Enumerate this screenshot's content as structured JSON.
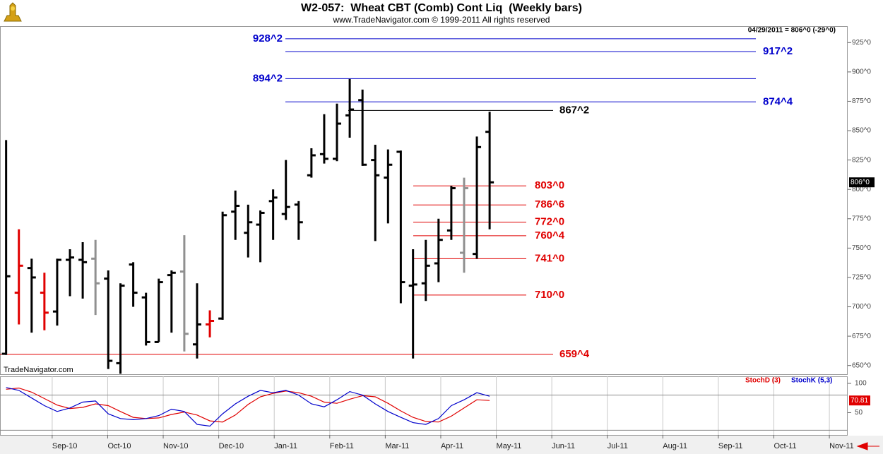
{
  "chart_data": [
    {
      "type": "ohlc",
      "title": "W2-057:  Wheat CBT (Comb) Cont Liq  (Weekly bars)",
      "subtitle": "www.TradeNavigator.com © 1999-2011 All rights reserved",
      "note": "04/29/2011 = 806^0 (-29^0)",
      "watermark": "TradeNavigator.com",
      "x": [
        -0.83,
        -0.6,
        -0.37,
        -0.14,
        0.09,
        0.32,
        0.55,
        0.78,
        1.01,
        1.23,
        1.46,
        1.69,
        1.92,
        2.15,
        2.38,
        2.61,
        2.84,
        3.07,
        3.3,
        3.53,
        3.75,
        3.98,
        4.21,
        4.44,
        4.67,
        4.9,
        5.13,
        5.36,
        5.59,
        5.82,
        6.05,
        6.28,
        6.5,
        6.73,
        6.96,
        7.19,
        7.42,
        7.65,
        7.88
      ],
      "xlim": [
        -0.94,
        14.33
      ],
      "series": [
        {
          "open": [
            660,
            712,
            733,
            712,
            696,
            740,
            740,
            741,
            724,
            652,
            736,
            708,
            670,
            727,
            730,
            668,
            685,
            690,
            781,
            763,
            770,
            790,
            779,
            787,
            812,
            830,
            826,
            863,
            876,
            825,
            810,
            832,
            718,
            720,
            737,
            765,
            746,
            745,
            849
          ],
          "high": [
            842,
            766,
            741,
            729,
            741,
            749,
            755,
            757,
            731,
            720,
            738,
            712,
            724,
            731,
            761,
            720,
            697,
            781,
            799,
            787,
            782,
            800,
            825,
            790,
            835,
            864,
            873,
            894,
            885,
            838,
            834,
            833,
            749,
            757,
            775,
            803,
            810,
            845,
            866
          ],
          "low": [
            659,
            685,
            678,
            680,
            684,
            709,
            707,
            693,
            647,
            643,
            700,
            667,
            670,
            678,
            662,
            656,
            674,
            689,
            757,
            742,
            738,
            757,
            774,
            757,
            810,
            822,
            824,
            844,
            820,
            756,
            771,
            703,
            656,
            705,
            721,
            757,
            729,
            741,
            766
          ],
          "close": [
            726,
            735,
            725,
            695,
            740,
            742,
            738,
            720,
            654,
            718,
            712,
            670,
            721,
            729,
            677,
            685,
            688,
            778,
            786,
            772,
            780,
            793,
            785,
            772,
            829,
            826,
            856,
            868,
            821,
            812,
            821,
            721,
            719,
            735,
            757,
            801,
            801,
            836,
            806
          ],
          "colors": [
            "#000000",
            "#e00000",
            "#000000",
            "#e00000",
            "#000000",
            "#000000",
            "#000000",
            "#909090",
            "#000000",
            "#000000",
            "#000000",
            "#000000",
            "#000000",
            "#000000",
            "#909090",
            "#000000",
            "#e00000",
            "#000000",
            "#000000",
            "#000000",
            "#000000",
            "#000000",
            "#000000",
            "#000000",
            "#000000",
            "#000000",
            "#000000",
            "#000000",
            "#000000",
            "#000000",
            "#000000",
            "#000000",
            "#000000",
            "#000000",
            "#000000",
            "#000000",
            "#909090",
            "#000000",
            "#000000"
          ],
          "last_label": "806^0"
        }
      ],
      "ylim": [
        642,
        939
      ],
      "yticks": [
        {
          "value": 650,
          "label": "650^0"
        },
        {
          "value": 675,
          "label": "675^0"
        },
        {
          "value": 700,
          "label": "700^0"
        },
        {
          "value": 725,
          "label": "725^0"
        },
        {
          "value": 750,
          "label": "750^0"
        },
        {
          "value": 775,
          "label": "775^0"
        },
        {
          "value": 800,
          "label": "800^0"
        },
        {
          "value": 825,
          "label": "825^0"
        },
        {
          "value": 850,
          "label": "850^0"
        },
        {
          "value": 875,
          "label": "875^0"
        },
        {
          "value": 900,
          "label": "900^0"
        },
        {
          "value": 925,
          "label": "925^0"
        }
      ],
      "levels": [
        {
          "value": 928.25,
          "label": "928^2",
          "color": "#0000cc"
        },
        {
          "value": 917.25,
          "label": "917^2",
          "color": "#0000cc"
        },
        {
          "value": 894.25,
          "label": "894^2",
          "color": "#0000cc"
        },
        {
          "value": 874.5,
          "label": "874^4",
          "color": "#0000cc"
        },
        {
          "value": 867.25,
          "label": "867^2",
          "color": "#000000"
        },
        {
          "value": 803,
          "label": "803^0",
          "color": "#e00000"
        },
        {
          "value": 786.75,
          "label": "786^6",
          "color": "#e00000"
        },
        {
          "value": 772,
          "label": "772^0",
          "color": "#e00000"
        },
        {
          "value": 760.5,
          "label": "760^4",
          "color": "#e00000"
        },
        {
          "value": 741,
          "label": "741^0",
          "color": "#e00000"
        },
        {
          "value": 710,
          "label": "710^0",
          "color": "#e00000"
        },
        {
          "value": 659.5,
          "label": "659^4",
          "color": "#e00000"
        }
      ]
    },
    {
      "type": "line",
      "series": [
        {
          "name": "StochD (3)",
          "color": "#e00000",
          "values": [
            90,
            92,
            85,
            74,
            63,
            57,
            59,
            65,
            62,
            52,
            42,
            40,
            41,
            47,
            51,
            46,
            36,
            34,
            46,
            64,
            77,
            83,
            87,
            84,
            78,
            68,
            66,
            73,
            79,
            77,
            66,
            53,
            42,
            35,
            34,
            44,
            58,
            72,
            70.81
          ],
          "last_label": "70.81"
        },
        {
          "name": "StochK (5,3)",
          "color": "#0000cc",
          "values": [
            93,
            88,
            75,
            62,
            52,
            58,
            68,
            70,
            48,
            40,
            38,
            40,
            45,
            56,
            52,
            30,
            27,
            48,
            65,
            78,
            88,
            84,
            88,
            80,
            65,
            60,
            72,
            86,
            80,
            65,
            52,
            42,
            33,
            30,
            40,
            62,
            72,
            84,
            78
          ]
        }
      ],
      "ylim": [
        12,
        112
      ],
      "yticks": [
        100,
        50
      ],
      "hlines": [
        80,
        20
      ],
      "xticks": [
        {
          "value": 0,
          "label": "Sep-10"
        },
        {
          "value": 1,
          "label": "Oct-10"
        },
        {
          "value": 2,
          "label": "Nov-10"
        },
        {
          "value": 3,
          "label": "Dec-10"
        },
        {
          "value": 4,
          "label": "Jan-11"
        },
        {
          "value": 5,
          "label": "Feb-11"
        },
        {
          "value": 6,
          "label": "Mar-11"
        },
        {
          "value": 7,
          "label": "Apr-11"
        },
        {
          "value": 8,
          "label": "May-11"
        },
        {
          "value": 9,
          "label": "Jun-11"
        },
        {
          "value": 10,
          "label": "Jul-11"
        },
        {
          "value": 11,
          "label": "Aug-11"
        },
        {
          "value": 12,
          "label": "Sep-11"
        },
        {
          "value": 13,
          "label": "Oct-11"
        },
        {
          "value": 14,
          "label": "Nov-11"
        }
      ]
    }
  ]
}
